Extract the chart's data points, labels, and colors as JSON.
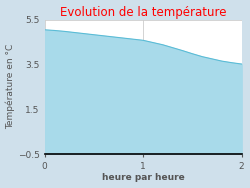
{
  "title": "Evolution de la température",
  "title_color": "#ff0000",
  "xlabel": "heure par heure",
  "ylabel": "Température en °C",
  "background_color": "#cfe0eb",
  "plot_bg_color": "#ffffff",
  "fill_color": "#a8daea",
  "line_color": "#5bbcd6",
  "line_width": 0.8,
  "x_data": [
    0,
    0.1,
    0.2,
    0.3,
    0.4,
    0.5,
    0.6,
    0.7,
    0.8,
    0.9,
    1.0,
    1.1,
    1.2,
    1.3,
    1.4,
    1.5,
    1.6,
    1.7,
    1.8,
    1.9,
    2.0
  ],
  "y_data": [
    5.05,
    5.02,
    4.98,
    4.93,
    4.88,
    4.83,
    4.78,
    4.73,
    4.68,
    4.63,
    4.58,
    4.48,
    4.38,
    4.25,
    4.12,
    3.98,
    3.85,
    3.75,
    3.65,
    3.58,
    3.52
  ],
  "xlim": [
    0,
    2
  ],
  "ylim": [
    -0.5,
    5.5
  ],
  "yticks": [
    -0.5,
    1.5,
    3.5,
    5.5
  ],
  "xticks": [
    0,
    1,
    2
  ],
  "fill_baseline": -0.5,
  "grid_color": "#cccccc",
  "tick_color": "#555555",
  "border_color": "#000000",
  "title_fontsize": 8.5,
  "label_fontsize": 6.5,
  "tick_fontsize": 6.5
}
